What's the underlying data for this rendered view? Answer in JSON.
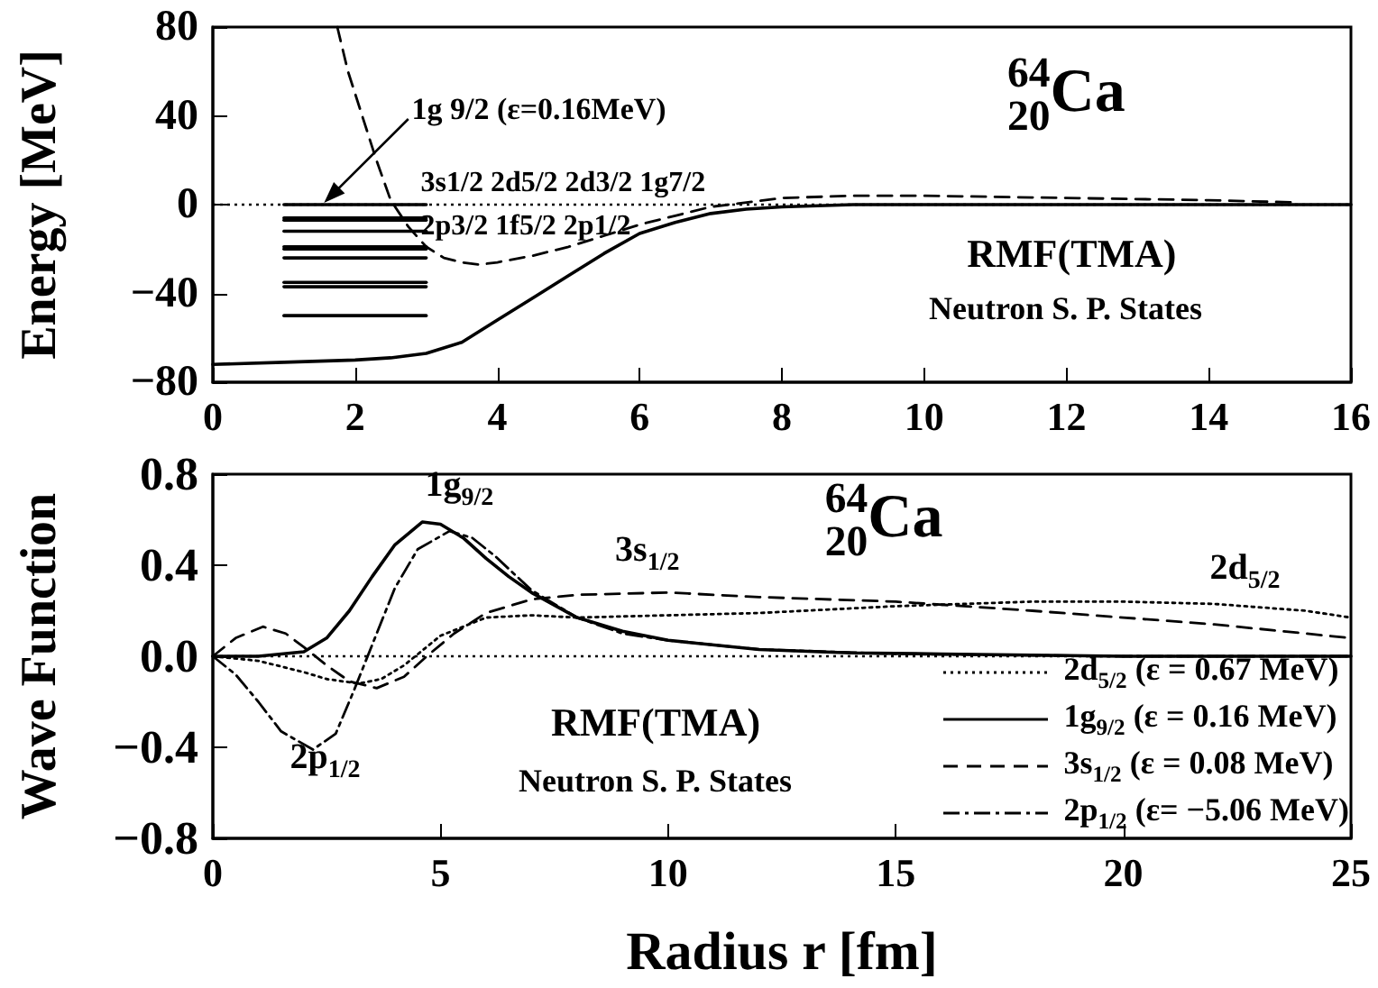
{
  "chart_data": [
    {
      "type": "line",
      "ylabel": "Energy [MeV]",
      "xlim": [
        0,
        16
      ],
      "xticks": [
        0,
        2,
        4,
        6,
        8,
        10,
        12,
        14,
        16
      ],
      "ylim": [
        -80,
        80
      ],
      "yticks": [
        -80,
        -40,
        0,
        40,
        80
      ],
      "marker": "none",
      "ref_lines": [
        {
          "axis": "y",
          "value": 0,
          "line_style": "dotted",
          "color": "#000000"
        }
      ],
      "annotations": [
        "1g 9/2 (ε=0.16MeV)",
        "3s1/2 2d5/2 2d3/2 1g7/2",
        "2p3/2 1f5/2 2p1/2",
        "$^{64}$$_{20}$Ca",
        "RMF(TMA)",
        "Neutron S. P. States"
      ],
      "series": [
        {
          "color": "#000000",
          "line_style": "solid",
          "x": [
            0,
            1,
            2,
            2.5,
            3,
            3.5,
            4,
            4.5,
            5,
            5.5,
            6,
            6.5,
            7,
            7.5,
            8,
            9,
            10,
            12,
            16
          ],
          "values": [
            -72,
            -71,
            -70,
            -69,
            -67,
            -62,
            -52,
            -42,
            -32,
            -22,
            -13,
            -8,
            -4,
            -2,
            -1,
            0,
            0,
            0,
            0
          ]
        },
        {
          "color": "#000000",
          "line_style": "dashed",
          "x": [
            1.75,
            1.9,
            2.1,
            2.3,
            2.5,
            2.75,
            3,
            3.25,
            3.5,
            3.75,
            4,
            4.5,
            5,
            5.5,
            6,
            6.5,
            7,
            7.5,
            8,
            9,
            10,
            12,
            14,
            15.2
          ],
          "values": [
            80,
            60,
            40,
            20,
            2,
            -10,
            -19,
            -24,
            -26,
            -27,
            -26,
            -23,
            -19,
            -14,
            -9,
            -5,
            -1,
            1,
            3,
            4,
            4,
            3,
            2,
            1
          ]
        },
        {
          "color": "#000000",
          "line_style": "solid",
          "x": [
            1,
            3
          ],
          "values": [
            0,
            0
          ]
        },
        {
          "color": "#000000",
          "line_style": "solid",
          "x": [
            1,
            3
          ],
          "values": [
            -6,
            -6
          ]
        },
        {
          "color": "#000000",
          "line_style": "solid",
          "x": [
            1,
            3
          ],
          "values": [
            -7,
            -7
          ]
        },
        {
          "color": "#000000",
          "line_style": "solid",
          "x": [
            1,
            3
          ],
          "values": [
            -12,
            -12
          ]
        },
        {
          "color": "#000000",
          "line_style": "solid",
          "x": [
            1,
            3
          ],
          "values": [
            -19,
            -19
          ]
        },
        {
          "color": "#000000",
          "line_style": "solid",
          "x": [
            1,
            3
          ],
          "values": [
            -20,
            -20
          ]
        },
        {
          "color": "#000000",
          "line_style": "solid",
          "x": [
            1,
            3
          ],
          "values": [
            -24,
            -24
          ]
        },
        {
          "color": "#000000",
          "line_style": "solid",
          "x": [
            1,
            3
          ],
          "values": [
            -35,
            -35
          ]
        },
        {
          "color": "#000000",
          "line_style": "solid",
          "x": [
            1,
            3
          ],
          "values": [
            -37,
            -37
          ]
        },
        {
          "color": "#000000",
          "line_style": "solid",
          "x": [
            1,
            3
          ],
          "values": [
            -50,
            -50
          ]
        }
      ]
    },
    {
      "type": "line",
      "xlabel": "Radius r [fm]",
      "ylabel": "Wave Function",
      "xlim": [
        0,
        25
      ],
      "xticks": [
        0,
        5,
        10,
        15,
        20,
        25
      ],
      "ylim": [
        -0.8,
        0.8
      ],
      "yticks": [
        {
          "value": -0.8,
          "label": "−0.8"
        },
        {
          "value": -0.4,
          "label": "−0.4"
        },
        {
          "value": 0,
          "label": "0.0"
        },
        {
          "value": 0.4,
          "label": "0.4"
        },
        {
          "value": 0.8,
          "label": "0.8"
        }
      ],
      "marker": "none",
      "legend": "bottom right",
      "ref_lines": [
        {
          "axis": "y",
          "value": 0,
          "line_style": "dotted",
          "color": "#000000"
        }
      ],
      "annotations": [
        "1g$_{9/2}$",
        "3s$_{1/2}$",
        "2d$_{5/2}$",
        "2p$_{1/2}$",
        "$^{64}$$_{20}$Ca",
        "RMF(TMA)",
        "Neutron S. P. States"
      ],
      "series": [
        {
          "name": "2d$_{5/2}$ (ε = 0.67 MeV)",
          "color": "#000000",
          "line_style": "dotted",
          "x": [
            0,
            1,
            2,
            2.5,
            3.2,
            3.7,
            4.2,
            5,
            6,
            7,
            8,
            10,
            12,
            15,
            18,
            20,
            22,
            24,
            25
          ],
          "values": [
            0,
            -0.02,
            -0.07,
            -0.1,
            -0.12,
            -0.1,
            -0.04,
            0.09,
            0.17,
            0.18,
            0.17,
            0.18,
            0.19,
            0.22,
            0.24,
            0.24,
            0.23,
            0.2,
            0.17
          ]
        },
        {
          "name": "1g$_{9/2}$ (ε = 0.16 MeV)",
          "color": "#000000",
          "line_style": "solid",
          "x": [
            0,
            1,
            2,
            2.5,
            3,
            3.5,
            4,
            4.6,
            5,
            5.5,
            6,
            6.5,
            7,
            8,
            9,
            10,
            12,
            14,
            16,
            20,
            25
          ],
          "values": [
            0,
            0,
            0.02,
            0.08,
            0.2,
            0.35,
            0.49,
            0.59,
            0.58,
            0.52,
            0.43,
            0.35,
            0.28,
            0.17,
            0.11,
            0.07,
            0.03,
            0.015,
            0.01,
            0,
            0
          ]
        },
        {
          "name": "3s$_{1/2}$ (ε = 0.08 MeV)",
          "color": "#000000",
          "line_style": "dashed",
          "x": [
            0,
            0.5,
            1.1,
            1.6,
            2,
            2.5,
            3,
            3.6,
            4.2,
            4.7,
            5.3,
            6,
            7,
            8,
            10,
            12,
            15,
            18,
            20,
            22,
            25
          ],
          "values": [
            0,
            0.08,
            0.13,
            0.1,
            0.04,
            -0.04,
            -0.11,
            -0.14,
            -0.09,
            0,
            0.1,
            0.19,
            0.25,
            0.27,
            0.28,
            0.26,
            0.24,
            0.2,
            0.17,
            0.14,
            0.08
          ]
        },
        {
          "name": "2p$_{1/2}$ (ε= −5.06 MeV)",
          "color": "#000000",
          "line_style": "dashdot",
          "x": [
            0,
            0.5,
            1,
            1.5,
            2.2,
            2.7,
            3.1,
            3.5,
            4,
            4.5,
            5.2,
            5.7,
            6.2,
            7,
            8,
            9,
            10,
            12,
            15,
            20,
            25
          ],
          "values": [
            0,
            -0.08,
            -0.2,
            -0.33,
            -0.41,
            -0.34,
            -0.15,
            0.05,
            0.3,
            0.47,
            0.55,
            0.52,
            0.44,
            0.29,
            0.17,
            0.1,
            0.07,
            0.03,
            0.01,
            0,
            0
          ]
        }
      ]
    }
  ]
}
